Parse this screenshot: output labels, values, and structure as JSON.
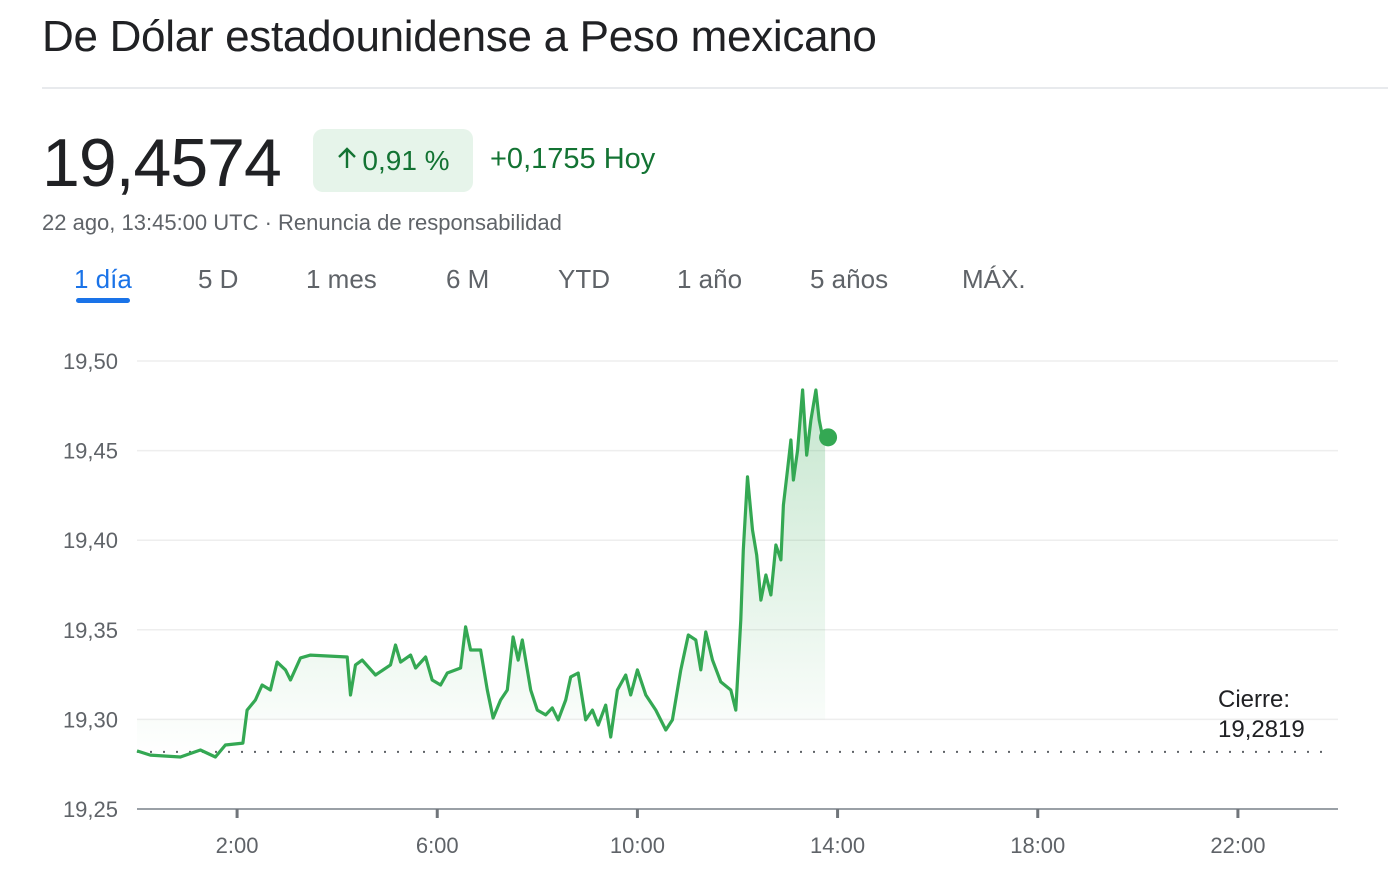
{
  "header": {
    "title": "De Dólar estadounidense a Peso mexicano",
    "price": "19,4574",
    "change_percent": "0,91 %",
    "change_arrow_icon": "arrow-up-icon",
    "change_today": "+0,1755 Hoy",
    "timestamp": "22 ago, 13:45:00 UTC",
    "separator": " · ",
    "disclaimer": "Renuncia de responsabilidad"
  },
  "tabs": [
    {
      "label": "1 día",
      "active": true
    },
    {
      "label": "5 D",
      "active": false
    },
    {
      "label": "1 mes",
      "active": false
    },
    {
      "label": "6 M",
      "active": false
    },
    {
      "label": "YTD",
      "active": false
    },
    {
      "label": "1 año",
      "active": false
    },
    {
      "label": "5 años",
      "active": false
    },
    {
      "label": "MÁX.",
      "active": false
    }
  ],
  "colors": {
    "line": "#34a853",
    "positive_text": "#137333",
    "badge_bg": "#e6f4ea",
    "accent": "#1a73e8"
  },
  "chart_data": {
    "type": "line",
    "title": "",
    "xlabel": "",
    "ylabel": "",
    "xlim": [
      "0:00",
      "24:00"
    ],
    "ylim": [
      19.25,
      19.5
    ],
    "yticks": [
      "19,50",
      "19,45",
      "19,40",
      "19,35",
      "19,30",
      "19,25"
    ],
    "ytick_values": [
      19.5,
      19.45,
      19.4,
      19.35,
      19.3,
      19.25
    ],
    "xticks": [
      "2:00",
      "6:00",
      "10:00",
      "14:00",
      "18:00",
      "22:00"
    ],
    "grid": true,
    "previous_close": {
      "label": "Cierre:",
      "value": 19.2819,
      "value_label": "19,2819"
    },
    "last_point": {
      "x": "13:45",
      "y": 19.4574
    },
    "series": [
      {
        "x": [
          "0:00",
          "0:16",
          "0:52",
          "1:16",
          "1:34",
          "1:46",
          "2:07",
          "2:12",
          "2:22",
          "2:30",
          "2:40",
          "2:48",
          "2:58",
          "3:04",
          "3:16",
          "3:28",
          "4:12",
          "4:16",
          "4:22",
          "4:30",
          "4:46",
          "5:04",
          "5:10",
          "5:16",
          "5:28",
          "5:34",
          "5:46",
          "5:54",
          "6:04",
          "6:12",
          "6:28",
          "6:34",
          "6:40",
          "6:52",
          "7:00",
          "7:07",
          "7:16",
          "7:24",
          "7:31",
          "7:37",
          "7:42",
          "7:52",
          "8:00",
          "8:10",
          "8:18",
          "8:25",
          "8:34",
          "8:40",
          "8:49",
          "8:58",
          "9:06",
          "9:13",
          "9:22",
          "9:28",
          "9:36",
          "9:46",
          "9:52",
          "10:00",
          "10:10",
          "10:22",
          "10:34",
          "10:42",
          "10:52",
          "11:01",
          "11:10",
          "11:16",
          "11:22",
          "11:30",
          "11:40",
          "11:52",
          "11:58",
          "12:04",
          "12:07",
          "12:12",
          "12:18",
          "12:23",
          "12:28",
          "12:34",
          "12:40",
          "12:46",
          "12:52",
          "12:55",
          "13:00",
          "13:04",
          "13:07",
          "13:12",
          "13:18",
          "13:23",
          "13:28",
          "13:34",
          "13:38",
          "13:42",
          "13:45"
        ],
        "y": [
          19.2824,
          19.2801,
          19.279,
          19.2829,
          19.279,
          19.2857,
          19.2868,
          19.3052,
          19.3108,
          19.3192,
          19.3164,
          19.332,
          19.3276,
          19.322,
          19.3343,
          19.3359,
          19.3348,
          19.3136,
          19.3304,
          19.3331,
          19.3248,
          19.3304,
          19.3415,
          19.332,
          19.3359,
          19.3287,
          19.3348,
          19.322,
          19.3192,
          19.3259,
          19.3287,
          19.3516,
          19.3387,
          19.3387,
          19.3164,
          19.3008,
          19.3108,
          19.3164,
          19.346,
          19.3331,
          19.3443,
          19.3164,
          19.3052,
          19.3025,
          19.3064,
          19.2997,
          19.3108,
          19.3237,
          19.3259,
          19.2997,
          19.3052,
          19.2969,
          19.308,
          19.2902,
          19.3164,
          19.3248,
          19.3136,
          19.3276,
          19.3136,
          19.3052,
          19.2941,
          19.2997,
          19.3276,
          19.3471,
          19.3443,
          19.3276,
          19.3488,
          19.3331,
          19.3209,
          19.3164,
          19.3052,
          19.3555,
          19.3945,
          19.4353,
          19.4057,
          19.3917,
          19.3666,
          19.3806,
          19.3694,
          19.3973,
          19.389,
          19.4196,
          19.4392,
          19.4559,
          19.4336,
          19.4503,
          19.4838,
          19.4475,
          19.4671,
          19.4838,
          19.4671,
          19.4576,
          19.4574
        ]
      }
    ]
  }
}
